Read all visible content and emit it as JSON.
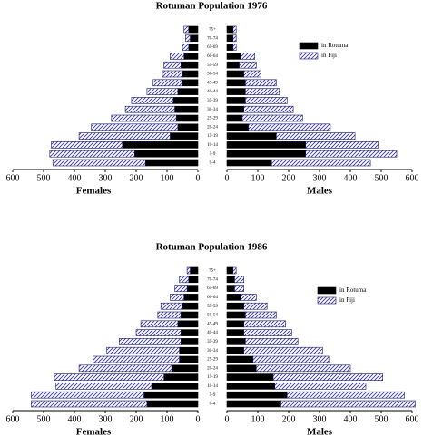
{
  "chart_data": [
    {
      "type": "pyramid",
      "title": "Rotuman Population 1976",
      "categories": [
        "75+",
        "70-74",
        "65-69",
        "60-64",
        "55-59",
        "50-54",
        "45-49",
        "40-44",
        "35-39",
        "30-34",
        "25-29",
        "20-24",
        "15-19",
        "10-14",
        "5-9",
        "0-4"
      ],
      "female_label": "Females",
      "male_label": "Males",
      "xlim": [
        0,
        600
      ],
      "xticks": [
        0,
        100,
        200,
        300,
        400,
        500,
        600
      ],
      "series": [
        {
          "name": "in Rotuma",
          "color": "#000000",
          "female_values": [
            30,
            25,
            30,
            45,
            55,
            50,
            50,
            65,
            80,
            75,
            70,
            65,
            90,
            245,
            205,
            170
          ],
          "male_values": [
            20,
            20,
            20,
            45,
            40,
            55,
            60,
            60,
            60,
            55,
            50,
            70,
            160,
            255,
            255,
            145
          ]
        },
        {
          "name": "in Fiji",
          "color": "#2b2bb0",
          "female_values": [
            15,
            15,
            20,
            45,
            55,
            65,
            95,
            100,
            135,
            160,
            210,
            280,
            295,
            230,
            275,
            300
          ],
          "male_values": [
            10,
            10,
            10,
            45,
            55,
            55,
            100,
            110,
            135,
            160,
            195,
            265,
            255,
            235,
            295,
            320
          ]
        }
      ]
    },
    {
      "type": "pyramid",
      "title": "Rotuman Population 1986",
      "categories": [
        "75+",
        "70-74",
        "65-69",
        "60-64",
        "55-59",
        "50-54",
        "45-49",
        "40-44",
        "35-39",
        "30-34",
        "25-29",
        "20-24",
        "15-19",
        "10-14",
        "5-9",
        "0-4"
      ],
      "female_label": "Females",
      "male_label": "Males",
      "xlim": [
        0,
        600
      ],
      "xticks": [
        0,
        100,
        200,
        300,
        400,
        500,
        600
      ],
      "series": [
        {
          "name": "in Rotuma",
          "color": "#000000",
          "female_values": [
            25,
            30,
            35,
            45,
            50,
            55,
            65,
            55,
            55,
            60,
            60,
            85,
            110,
            150,
            175,
            165
          ],
          "male_values": [
            20,
            25,
            25,
            45,
            55,
            60,
            55,
            55,
            60,
            55,
            85,
            95,
            150,
            155,
            195,
            175
          ]
        },
        {
          "name": "in Fiji",
          "color": "#2b2bb0",
          "female_values": [
            10,
            30,
            40,
            45,
            70,
            75,
            120,
            145,
            200,
            235,
            280,
            300,
            355,
            310,
            365,
            375
          ],
          "male_values": [
            10,
            30,
            30,
            50,
            75,
            100,
            135,
            155,
            170,
            255,
            245,
            305,
            355,
            295,
            380,
            435
          ]
        }
      ]
    }
  ]
}
